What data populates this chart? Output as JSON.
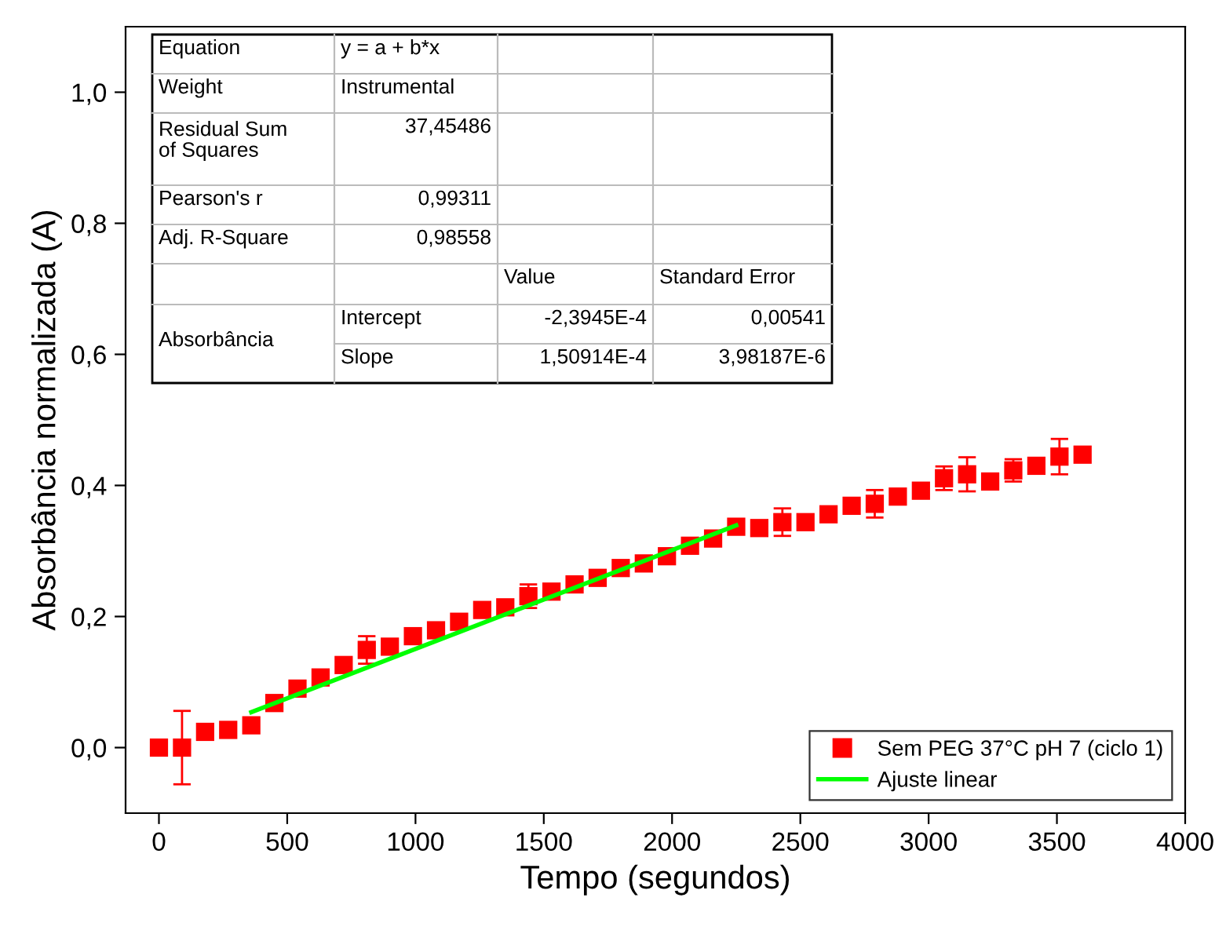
{
  "chart_data": {
    "type": "scatter",
    "xlabel": "Tempo (segundos)",
    "ylabel": "Absorbância normalizada (A)",
    "xlim": [
      -130,
      4000
    ],
    "xticks": [
      0,
      500,
      1000,
      1500,
      2000,
      2500,
      3000,
      3500,
      4000
    ],
    "ylim": [
      -0.1,
      1.1
    ],
    "yticks": [
      {
        "value": 0,
        "label": "0,0"
      },
      {
        "value": 0.2,
        "label": "0,2"
      },
      {
        "value": 0.4,
        "label": "0,4"
      },
      {
        "value": 0.6,
        "label": "0,6"
      },
      {
        "value": 0.8,
        "label": "0,8"
      },
      {
        "value": 1.0,
        "label": "1,0"
      }
    ],
    "grid": false,
    "legend": "bottom right",
    "series": [
      {
        "name": "Sem PEG 37°C pH 7 (ciclo 1)",
        "color": "#ff0000",
        "marker": "square",
        "x": [
          0,
          90,
          180,
          270,
          360,
          450,
          540,
          630,
          720,
          810,
          900,
          990,
          1080,
          1170,
          1260,
          1350,
          1440,
          1530,
          1620,
          1710,
          1800,
          1890,
          1980,
          2070,
          2160,
          2250,
          2340,
          2430,
          2520,
          2610,
          2700,
          2790,
          2880,
          2970,
          3060,
          3150,
          3240,
          3330,
          3420,
          3510,
          3600
        ],
        "values": [
          0,
          0,
          0.024,
          0.027,
          0.034,
          0.068,
          0.09,
          0.107,
          0.126,
          0.149,
          0.154,
          0.17,
          0.179,
          0.192,
          0.21,
          0.214,
          0.231,
          0.238,
          0.249,
          0.259,
          0.274,
          0.281,
          0.292,
          0.308,
          0.319,
          0.337,
          0.335,
          0.344,
          0.344,
          0.356,
          0.369,
          0.372,
          0.383,
          0.392,
          0.411,
          0.417,
          0.406,
          0.423,
          0.43,
          0.444,
          0.447
        ],
        "errors": [
          null,
          0.056,
          null,
          null,
          null,
          null,
          null,
          null,
          null,
          0.021,
          null,
          null,
          null,
          null,
          null,
          null,
          0.018,
          null,
          null,
          null,
          null,
          null,
          null,
          null,
          null,
          null,
          null,
          0.021,
          null,
          null,
          null,
          0.021,
          null,
          null,
          0.018,
          0.026,
          null,
          0.017,
          null,
          0.027,
          null
        ]
      },
      {
        "name": "Ajuste linear",
        "type": "line",
        "color": "#00ff00",
        "line_style": "solid",
        "marker": "none",
        "x": [
          360,
          2250
        ],
        "values": [
          0.054,
          0.339
        ]
      }
    ],
    "annotations": [
      "Equation",
      "y = a + b*x",
      "Weight",
      "Instrumental",
      "Residual Sum\nof Squares",
      "37,45486",
      "Pearson's r",
      "0,99311",
      "Adj. R-Square",
      "0,98558",
      "Value",
      "Standard Error",
      "Absorbância",
      "Intercept",
      "-2,3945E-4",
      "0,00541",
      "Slope",
      "1,50914E-4",
      "3,98187E-6"
    ]
  }
}
